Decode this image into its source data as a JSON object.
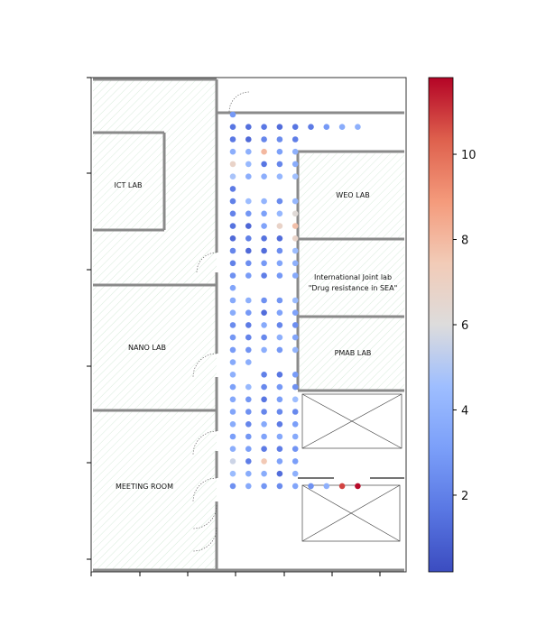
{
  "chart_data": {
    "type": "scatter",
    "title": "",
    "xlabel": "",
    "ylabel": "",
    "background": "floor plan",
    "rooms": [
      {
        "id": "ict",
        "label": "ICT LAB"
      },
      {
        "id": "nano",
        "label": "NANO LAB"
      },
      {
        "id": "meeting",
        "label": "MEETING ROOM"
      },
      {
        "id": "weo",
        "label": "WEO LAB"
      },
      {
        "id": "intl",
        "label_lines": [
          "International Joint lab",
          "\"Drug resistance in SEA\""
        ]
      },
      {
        "id": "pmab",
        "label": "PMAB LAB"
      }
    ],
    "colorbar": {
      "colormap": "coolwarm",
      "min": 0.2,
      "max": 11.8,
      "ticks": [
        2,
        4,
        6,
        8,
        10
      ],
      "tick_labels": [
        "2",
        "4",
        "6",
        "8",
        "10"
      ]
    },
    "points_note": "measurement grid along corridor; value = color",
    "points": [
      [
        0,
        0,
        2.9
      ],
      [
        0,
        1,
        1.6
      ],
      [
        0,
        2,
        1.7
      ],
      [
        0,
        3,
        3.8
      ],
      [
        0,
        4,
        6.8
      ],
      [
        0,
        5,
        4.8
      ],
      [
        0,
        6,
        1.8
      ],
      [
        0,
        7,
        2.0
      ],
      [
        0,
        8,
        2.1
      ],
      [
        0,
        9,
        1.5
      ],
      [
        0,
        10,
        1.2
      ],
      [
        0,
        11,
        2.2
      ],
      [
        0,
        12,
        2.0
      ],
      [
        0,
        13,
        2.6
      ],
      [
        0,
        14,
        3.4
      ],
      [
        0,
        15,
        3.6
      ],
      [
        0,
        16,
        3.7
      ],
      [
        0,
        17,
        2.4
      ],
      [
        0,
        18,
        2.8
      ],
      [
        0,
        19,
        3.0
      ],
      [
        0,
        20,
        3.6
      ],
      [
        0,
        21,
        3.9
      ],
      [
        0,
        22,
        3.2
      ],
      [
        0,
        23,
        3.5
      ],
      [
        0,
        24,
        3.4
      ],
      [
        0,
        25,
        3.7
      ],
      [
        0,
        26,
        3.1
      ],
      [
        0,
        27,
        3.8
      ],
      [
        0,
        28,
        5.6
      ],
      [
        0,
        29,
        4.4
      ],
      [
        0,
        30,
        2.6
      ],
      [
        1,
        1,
        1.4
      ],
      [
        1,
        2,
        1.2
      ],
      [
        1,
        3,
        3.9
      ],
      [
        1,
        4,
        4.3
      ],
      [
        1,
        5,
        3.8
      ],
      [
        1,
        7,
        4.5
      ],
      [
        1,
        8,
        2.8
      ],
      [
        1,
        9,
        1.1
      ],
      [
        1,
        10,
        2.0
      ],
      [
        1,
        11,
        1.2
      ],
      [
        1,
        12,
        2.5
      ],
      [
        1,
        13,
        3.0
      ],
      [
        1,
        15,
        3.9
      ],
      [
        1,
        16,
        2.9
      ],
      [
        1,
        17,
        1.8
      ],
      [
        1,
        18,
        2.1
      ],
      [
        1,
        19,
        2.7
      ],
      [
        1,
        20,
        3.8
      ],
      [
        1,
        22,
        4.3
      ],
      [
        1,
        23,
        2.8
      ],
      [
        1,
        24,
        2.6
      ],
      [
        1,
        25,
        2.2
      ],
      [
        1,
        26,
        2.8
      ],
      [
        1,
        27,
        3.2
      ],
      [
        1,
        28,
        1.9
      ],
      [
        1,
        29,
        3.7
      ],
      [
        1,
        30,
        3.6
      ],
      [
        2,
        1,
        1.7
      ],
      [
        2,
        2,
        2.2
      ],
      [
        2,
        3,
        8.0
      ],
      [
        2,
        4,
        1.6
      ],
      [
        2,
        5,
        3.8
      ],
      [
        2,
        7,
        4.1
      ],
      [
        2,
        8,
        3.2
      ],
      [
        2,
        9,
        3.3
      ],
      [
        2,
        10,
        1.5
      ],
      [
        2,
        11,
        1.3
      ],
      [
        2,
        12,
        2.9
      ],
      [
        2,
        13,
        1.9
      ],
      [
        2,
        15,
        2.6
      ],
      [
        2,
        16,
        1.3
      ],
      [
        2,
        17,
        3.6
      ],
      [
        2,
        18,
        2.3
      ],
      [
        2,
        19,
        3.8
      ],
      [
        2,
        21,
        2.0
      ],
      [
        2,
        22,
        2.3
      ],
      [
        2,
        23,
        1.6
      ],
      [
        2,
        24,
        2.2
      ],
      [
        2,
        25,
        3.6
      ],
      [
        2,
        26,
        3.3
      ],
      [
        2,
        27,
        1.8
      ],
      [
        2,
        28,
        7.5
      ],
      [
        2,
        29,
        3.7
      ],
      [
        2,
        30,
        2.8
      ],
      [
        3,
        1,
        1.3
      ],
      [
        3,
        2,
        2.4
      ],
      [
        3,
        3,
        3.2
      ],
      [
        3,
        4,
        2.2
      ],
      [
        3,
        5,
        4.2
      ],
      [
        3,
        7,
        2.4
      ],
      [
        3,
        8,
        4.2
      ],
      [
        3,
        9,
        6.8
      ],
      [
        3,
        10,
        1.3
      ],
      [
        3,
        11,
        2.5
      ],
      [
        3,
        12,
        3.4
      ],
      [
        3,
        13,
        2.9
      ],
      [
        3,
        15,
        2.8
      ],
      [
        3,
        16,
        3.3
      ],
      [
        3,
        17,
        2.2
      ],
      [
        3,
        18,
        3.9
      ],
      [
        3,
        19,
        2.9
      ],
      [
        3,
        21,
        1.6
      ],
      [
        3,
        22,
        2.9
      ],
      [
        3,
        23,
        3.1
      ],
      [
        3,
        24,
        2.3
      ],
      [
        3,
        25,
        1.8
      ],
      [
        3,
        26,
        3.5
      ],
      [
        3,
        27,
        1.9
      ],
      [
        3,
        28,
        3.3
      ],
      [
        3,
        29,
        1.3
      ],
      [
        3,
        30,
        2.4
      ],
      [
        4,
        1,
        1.6
      ],
      [
        4,
        2,
        1.9
      ],
      [
        4,
        3,
        3.9
      ],
      [
        4,
        4,
        3.7
      ],
      [
        4,
        5,
        4.6
      ],
      [
        4,
        7,
        4.2
      ],
      [
        4,
        8,
        6.2
      ],
      [
        4,
        9,
        7.8
      ],
      [
        4,
        10,
        6.8
      ],
      [
        4,
        11,
        4.5
      ],
      [
        4,
        12,
        3.9
      ],
      [
        4,
        13,
        3.6
      ],
      [
        4,
        15,
        4.4
      ],
      [
        4,
        16,
        3.3
      ],
      [
        4,
        17,
        2.5
      ],
      [
        4,
        18,
        3.4
      ],
      [
        4,
        19,
        4.1
      ],
      [
        4,
        21,
        3.0
      ],
      [
        4,
        22,
        2.6
      ],
      [
        4,
        23,
        4.5
      ],
      [
        4,
        24,
        2.3
      ],
      [
        4,
        25,
        3.1
      ],
      [
        4,
        26,
        3.6
      ],
      [
        4,
        27,
        2.7
      ],
      [
        4,
        28,
        3.1
      ],
      [
        4,
        29,
        3.9
      ],
      [
        4,
        30,
        3.4
      ],
      [
        5,
        1,
        1.8
      ],
      [
        5,
        30,
        2.6
      ],
      [
        6,
        1,
        2.9
      ],
      [
        6,
        30,
        3.9
      ],
      [
        7,
        1,
        3.7
      ],
      [
        7,
        30,
        10.8
      ],
      [
        8,
        1,
        3.9
      ],
      [
        8,
        30,
        11.7
      ]
    ]
  }
}
